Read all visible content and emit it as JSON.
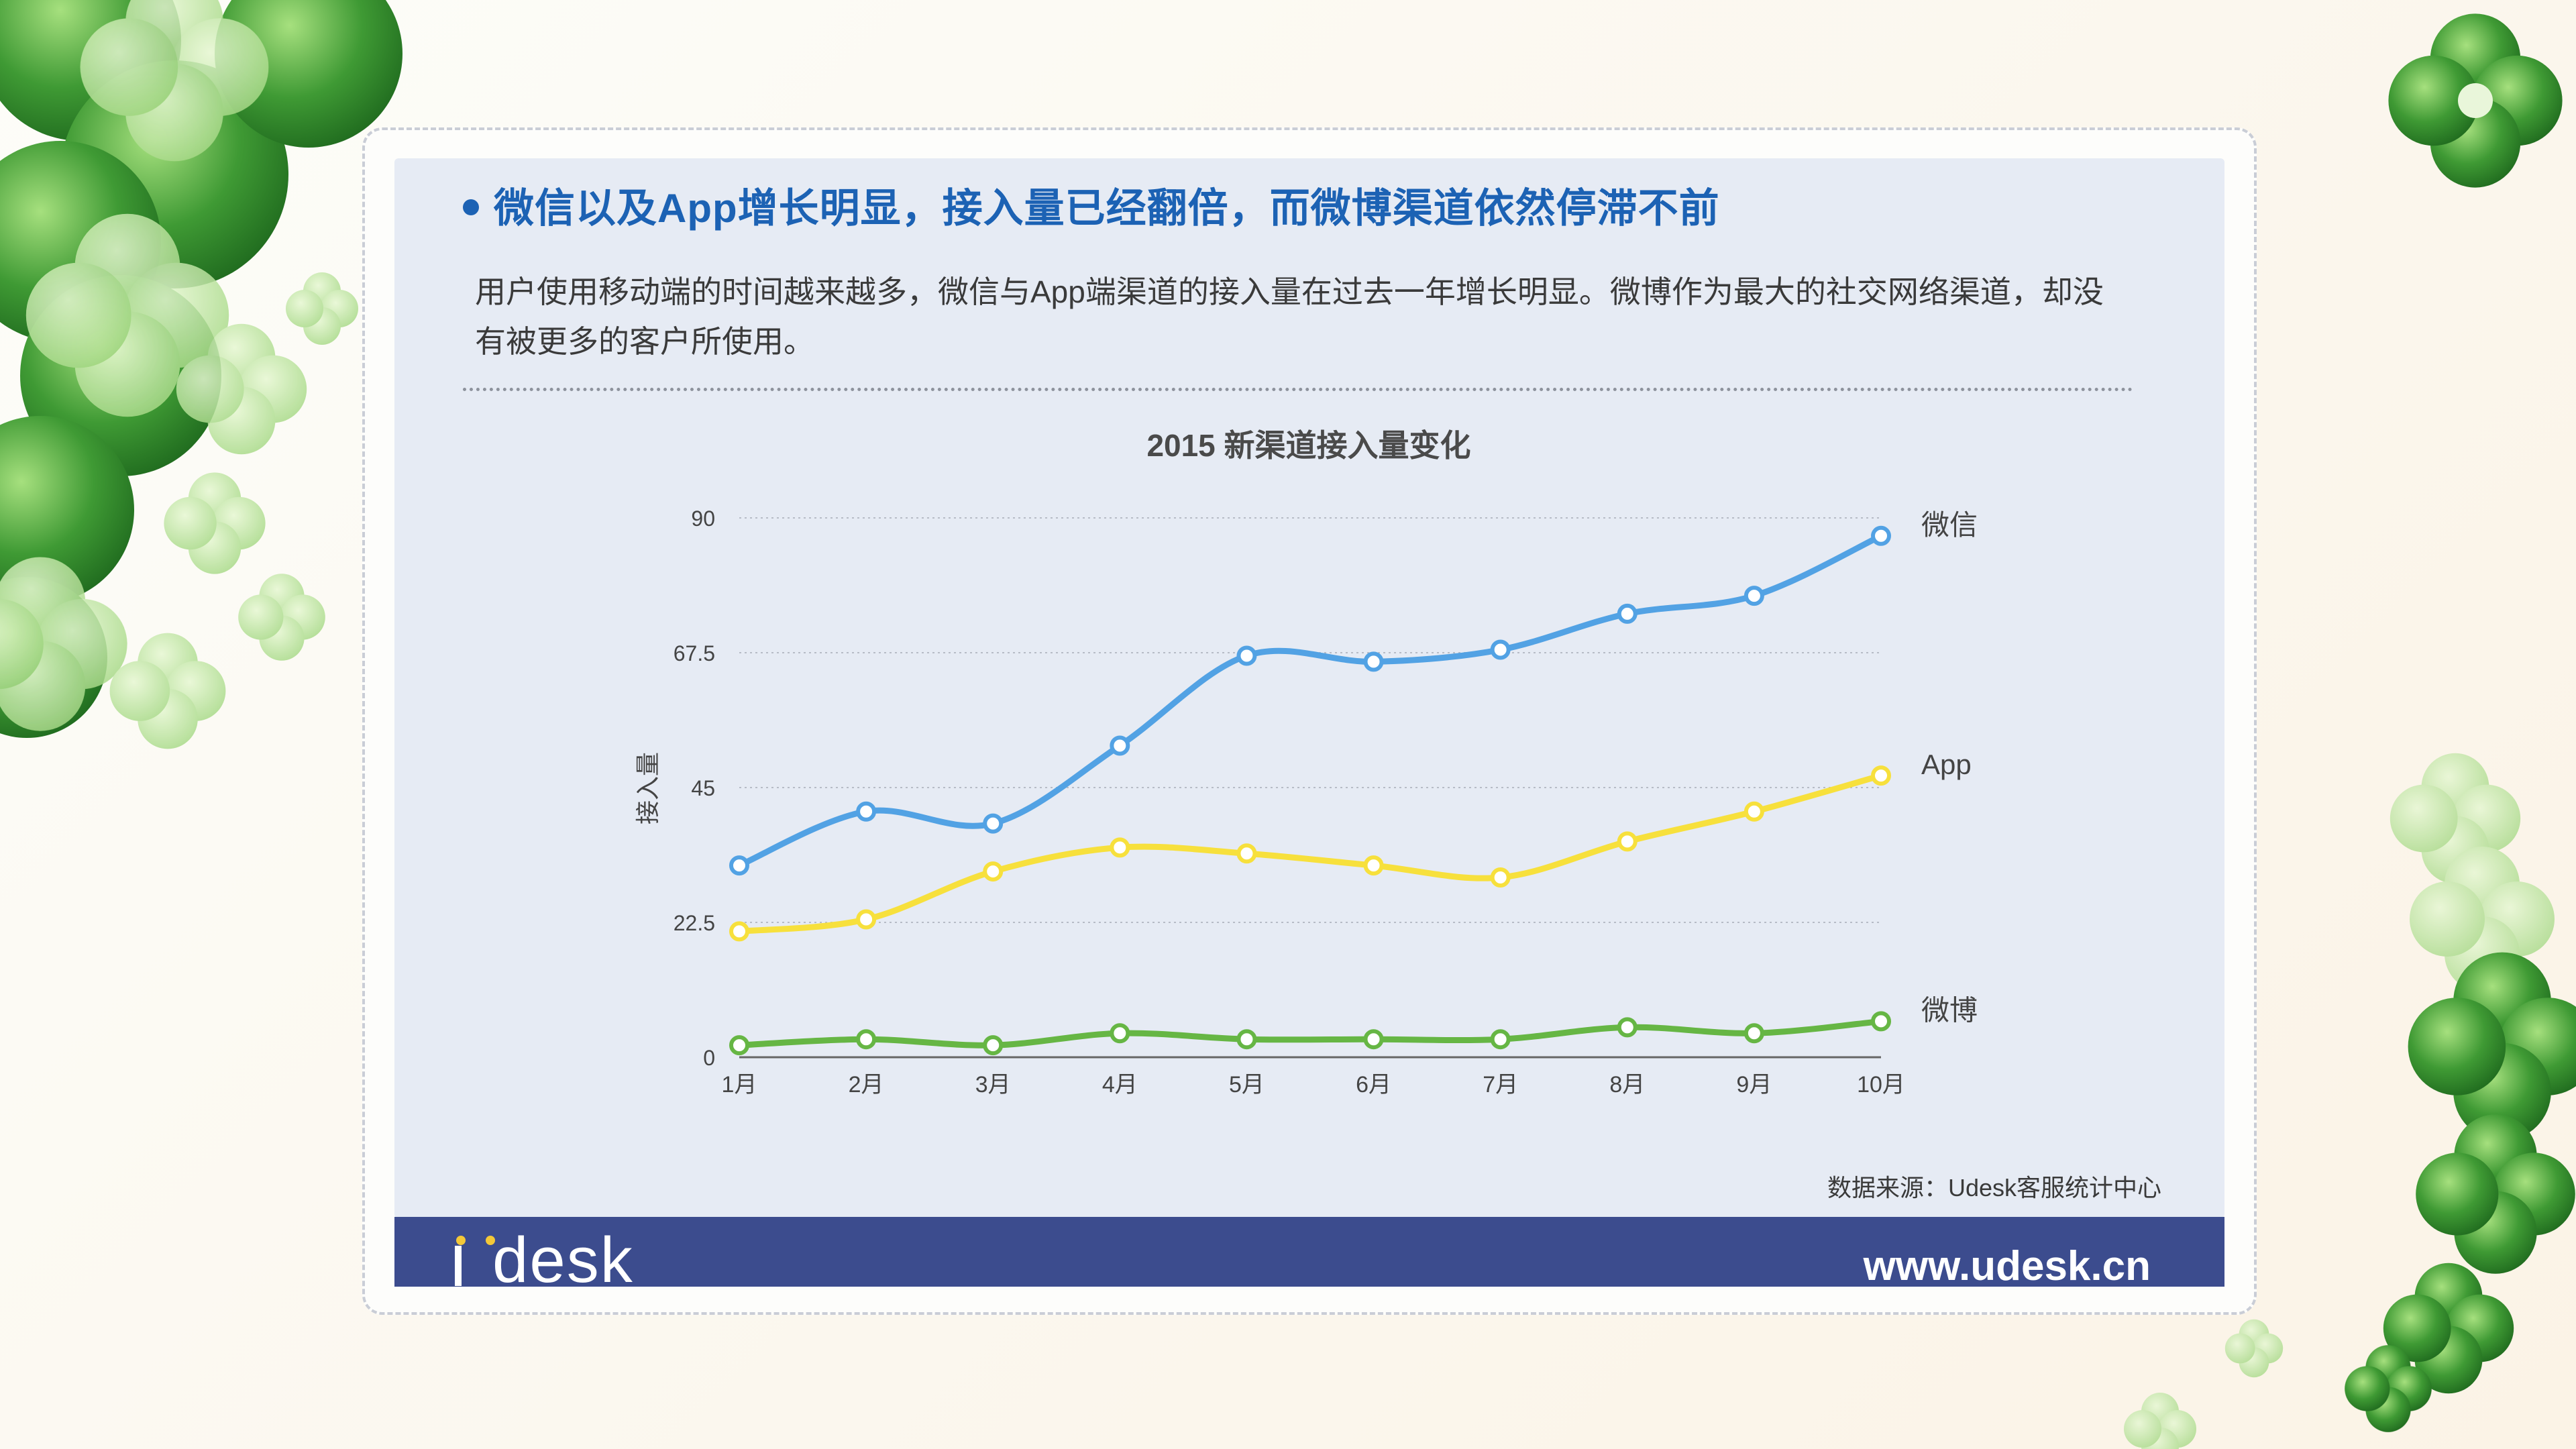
{
  "headline": "微信以及App增长明显，接入量已经翻倍，而微博渠道依然停滞不前",
  "description": "用户使用移动端的时间越来越多，微信与App端渠道的接入量在过去一年增长明显。微博作为最大的社交网络渠道，却没有被更多的客户所使用。",
  "source": "数据来源：Udesk客服统计中心",
  "footer": {
    "logo": "desk",
    "url": "www.udesk.cn"
  },
  "colors": {
    "wechat": "#52a2e4",
    "app": "#f7e03c",
    "weibo": "#66b644",
    "headline": "#1c62b4",
    "footer": "#3c4c8e"
  },
  "chart_data": {
    "type": "line",
    "title": "2015 新渠道接入量变化",
    "ylabel": "接入量",
    "xlabel": "",
    "categories": [
      "1月",
      "2月",
      "3月",
      "4月",
      "5月",
      "6月",
      "7月",
      "8月",
      "9月",
      "10月"
    ],
    "yticks": [
      "0",
      "22.5",
      "45",
      "67.5",
      "90"
    ],
    "ylim": [
      0,
      90
    ],
    "grid": true,
    "series": [
      {
        "name": "微信",
        "color": "#52a2e4",
        "values": [
          32,
          41,
          39,
          52,
          67,
          66,
          68,
          74,
          77,
          87
        ]
      },
      {
        "name": "App",
        "color": "#f7e03c",
        "values": [
          21,
          23,
          31,
          35,
          34,
          32,
          30,
          36,
          41,
          47
        ]
      },
      {
        "name": "微博",
        "color": "#66b644",
        "values": [
          2,
          3,
          2,
          4,
          3,
          3,
          3,
          5,
          4,
          6
        ]
      }
    ]
  }
}
